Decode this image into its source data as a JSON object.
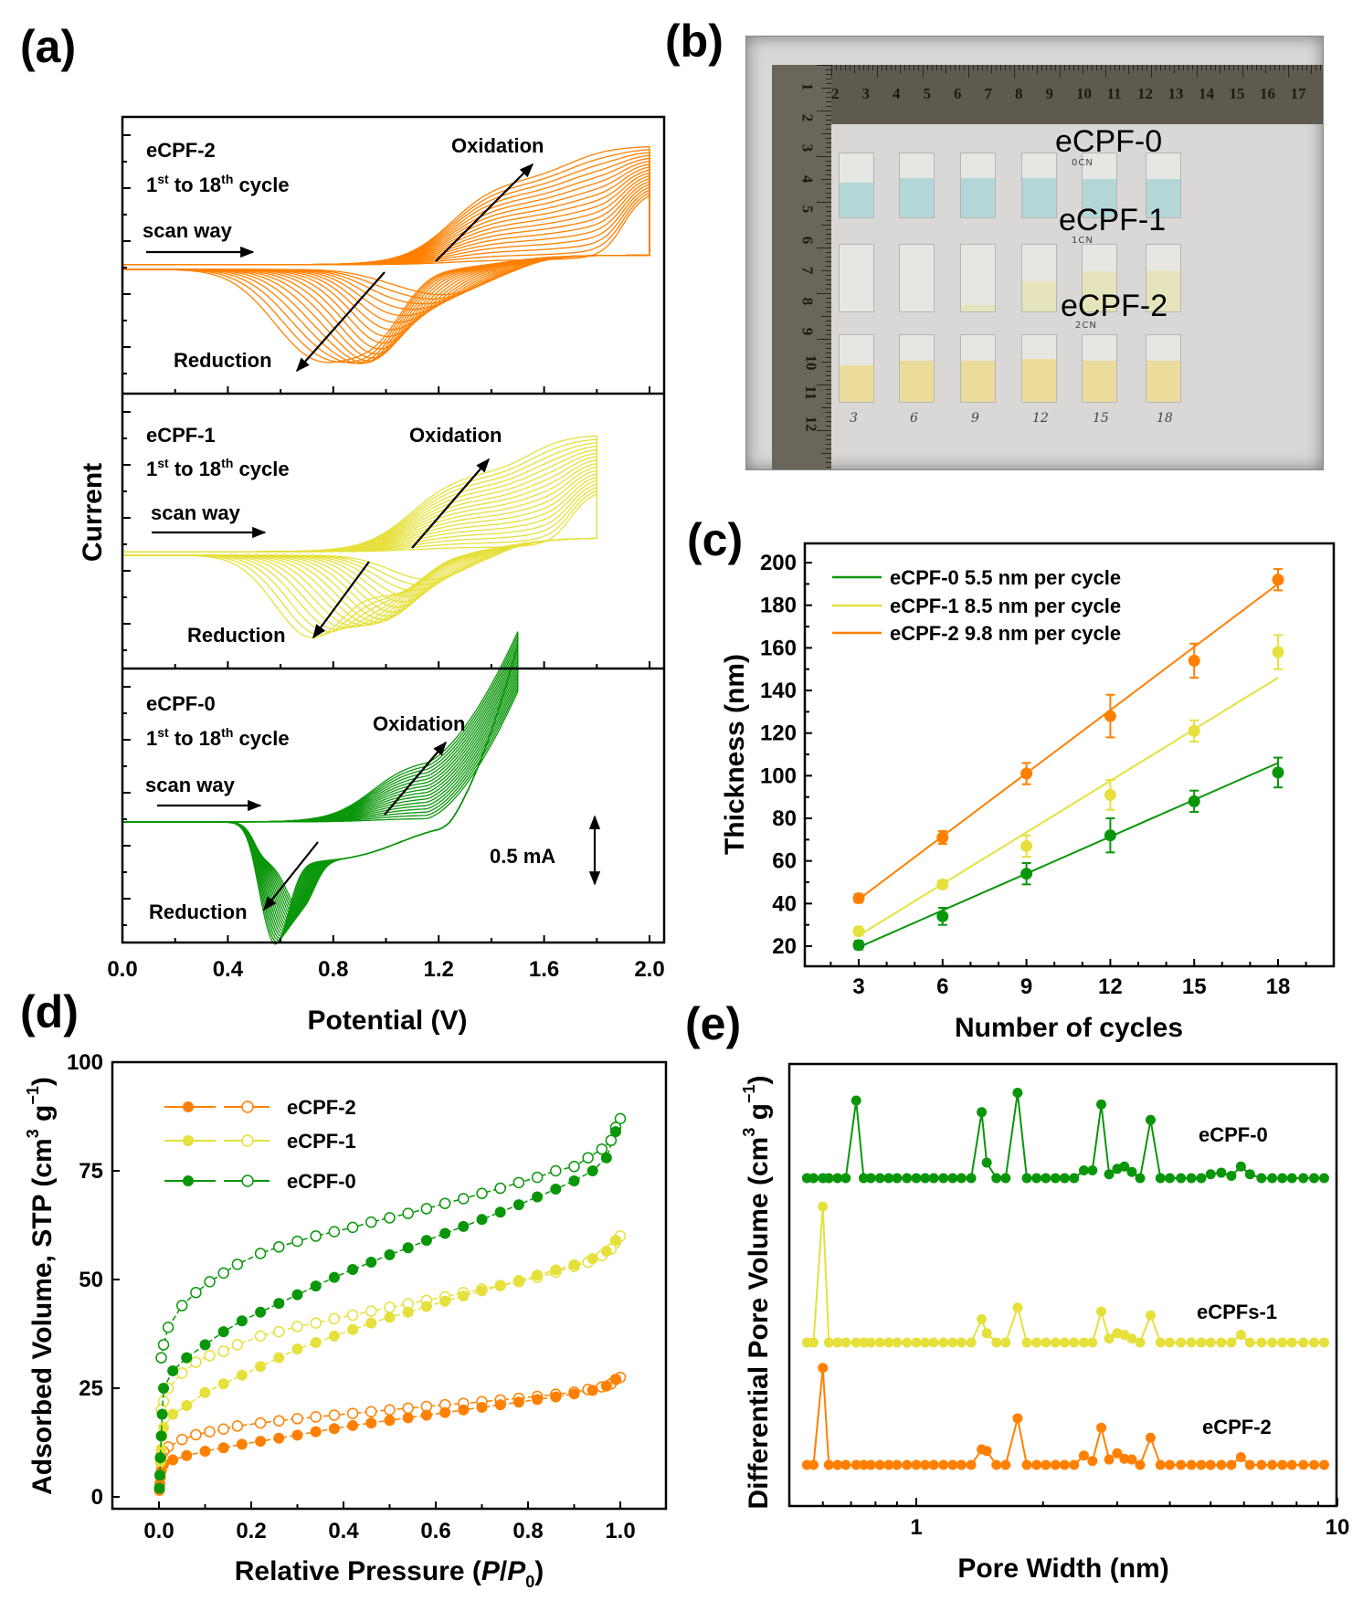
{
  "panel_labels": {
    "a": "(a)",
    "b": "(b)",
    "c": "(c)",
    "d": "(d)",
    "e": "(e)"
  },
  "colors": {
    "eCPF-0": "#0a960a",
    "eCPF-1": "#e6e03c",
    "eCPF-2": "#ff8000"
  },
  "chart_data": [
    {
      "panel": "a",
      "type": "line",
      "xlabel": "Potential (V)",
      "ylabel": "Current",
      "xlim": [
        0.0,
        2.05
      ],
      "xticks": [
        "0.0",
        "0.4",
        "0.8",
        "1.2",
        "1.6",
        "2.0"
      ],
      "grid": false,
      "scale_bar": "0.5 mA",
      "subplots": [
        {
          "name": "eCPF-2",
          "vmax": 2.0,
          "cycles": 18,
          "cycle_text": {
            "n1": "1",
            "s1": "st",
            "mid": " to 18",
            "s2": "th",
            "end": " cycle"
          },
          "scan": "scan way",
          "ox": "Oxidation",
          "red": "Reduction"
        },
        {
          "name": "eCPF-1",
          "vmax": 1.8,
          "cycles": 18,
          "cycle_text": {
            "n1": "1",
            "s1": "st",
            "mid": " to 18",
            "s2": "th",
            "end": " cycle"
          },
          "scan": "scan way",
          "ox": "Oxidation",
          "red": "Reduction"
        },
        {
          "name": "eCPF-0",
          "vmax": 1.5,
          "cycles": 18,
          "cycle_text": {
            "n1": "1",
            "s1": "st",
            "mid": " to 18",
            "s2": "th",
            "end": " cycle"
          },
          "scan": "scan way",
          "ox": "Oxidation",
          "red": "Reduction"
        }
      ]
    },
    {
      "panel": "c",
      "type": "scatter",
      "xlabel": "Number of cycles",
      "ylabel": "Thickness (nm)",
      "xlim": [
        1,
        20
      ],
      "ylim": [
        10,
        210
      ],
      "xticks": [
        3,
        6,
        9,
        12,
        15,
        18
      ],
      "yticks": [
        20,
        40,
        60,
        80,
        100,
        120,
        140,
        160,
        180,
        200
      ],
      "legend_position": "top-left",
      "x": [
        3,
        6,
        9,
        12,
        15,
        18
      ],
      "series": [
        {
          "name": "eCPF-0",
          "legend": "eCPF-0  5.5 nm per cycle",
          "values": [
            20.5,
            34,
            54,
            72,
            88,
            101.5
          ],
          "errors": [
            2,
            4,
            5,
            8,
            5,
            7
          ],
          "fit": [
            19.5,
            106
          ]
        },
        {
          "name": "eCPF-1",
          "legend": "eCPF-1  8.5 nm per cycle",
          "values": [
            27,
            49,
            67,
            91,
            121,
            158
          ],
          "errors": [
            2,
            2,
            5,
            7,
            5,
            8
          ],
          "fit": [
            25,
            146
          ]
        },
        {
          "name": "eCPF-2",
          "legend": "eCPF-2  9.8 nm per cycle",
          "values": [
            42.5,
            71,
            101,
            128,
            154,
            192
          ],
          "errors": [
            2,
            3,
            5,
            10,
            8,
            5
          ],
          "fit": [
            42,
            190
          ]
        }
      ]
    },
    {
      "panel": "d",
      "type": "scatter",
      "xlabel": {
        "pre": "Relative Pressure (",
        "p": "P",
        "slash": "/",
        "p0": "P",
        "sub": "0",
        "post": ")"
      },
      "ylabel": {
        "pre": "Adsorbed Volume, STP (cm",
        "sup1": "3",
        "mid": " g",
        "sup2": "−1",
        "post": ")"
      },
      "xlim": [
        -0.1,
        1.1
      ],
      "ylim": [
        -2.6,
        100
      ],
      "xticks": [
        "0.0",
        "0.2",
        "0.4",
        "0.6",
        "0.8",
        "1.0"
      ],
      "yticks": [
        0,
        25,
        50,
        75,
        100
      ],
      "legend_position": "top-left",
      "adsorption_x": [
        0.001,
        0.002,
        0.003,
        0.005,
        0.007,
        0.01,
        0.03,
        0.06,
        0.1,
        0.14,
        0.18,
        0.22,
        0.26,
        0.3,
        0.34,
        0.38,
        0.42,
        0.46,
        0.5,
        0.54,
        0.58,
        0.62,
        0.66,
        0.7,
        0.74,
        0.78,
        0.82,
        0.86,
        0.9,
        0.94,
        0.97,
        0.99
      ],
      "desorption_x": [
        1.0,
        0.99,
        0.98,
        0.96,
        0.93,
        0.9,
        0.86,
        0.82,
        0.78,
        0.74,
        0.7,
        0.66,
        0.62,
        0.58,
        0.54,
        0.5,
        0.46,
        0.42,
        0.38,
        0.34,
        0.3,
        0.26,
        0.22,
        0.17,
        0.14,
        0.11,
        0.08,
        0.05,
        0.02,
        0.01,
        0.005
      ],
      "series": [
        {
          "name": "eCPF-2",
          "adsorption": [
            1.5,
            3,
            4.5,
            6,
            7,
            7.5,
            8.5,
            9.5,
            10.5,
            11.3,
            12.1,
            12.8,
            13.5,
            14.2,
            15,
            15.7,
            16.4,
            17,
            17.6,
            18.2,
            18.8,
            19.4,
            20,
            20.6,
            21.2,
            21.8,
            22.4,
            23,
            23.7,
            24.5,
            25.5,
            27
          ],
          "desorption": [
            27.5,
            27,
            26,
            25.3,
            24.7,
            24.1,
            23.6,
            23.1,
            22.7,
            22.3,
            21.9,
            21.5,
            21.2,
            20.8,
            20.4,
            20,
            19.6,
            19.2,
            18.8,
            18.4,
            18,
            17.5,
            17,
            16.3,
            15.6,
            15,
            14.3,
            13.2,
            11.5,
            10.5,
            9.5
          ]
        },
        {
          "name": "eCPF-1",
          "adsorption": [
            2,
            5,
            8,
            11,
            14,
            16,
            19,
            21,
            24,
            26,
            28,
            30,
            32,
            34,
            35.5,
            37,
            38.5,
            40,
            41.3,
            42.5,
            43.8,
            45,
            46.2,
            47.4,
            48.6,
            49.8,
            51,
            52.2,
            53.4,
            54.8,
            56.5,
            59
          ],
          "desorption": [
            60,
            58.5,
            57,
            55.5,
            54,
            53,
            51.7,
            50.5,
            49.5,
            48.6,
            47.8,
            47,
            46,
            45.2,
            44.4,
            43.6,
            42.7,
            41.8,
            41,
            40,
            39.2,
            38,
            37,
            35,
            33.5,
            32.5,
            31,
            28.5,
            25,
            22,
            20
          ]
        },
        {
          "name": "eCPF-0",
          "adsorption": [
            2,
            5,
            9,
            14,
            19,
            25,
            29,
            32,
            35,
            38,
            40.5,
            42.5,
            44.5,
            46.5,
            48.5,
            50.5,
            52.3,
            54,
            55.7,
            57.3,
            59,
            60.6,
            62.2,
            63.8,
            65.5,
            67.2,
            69,
            70.8,
            72.7,
            75,
            78,
            84
          ],
          "desorption": [
            87,
            85,
            82,
            80,
            78,
            76,
            75,
            73.5,
            72.3,
            71,
            69.8,
            68.6,
            67.5,
            66.3,
            65.2,
            64.2,
            63.2,
            62,
            61,
            60,
            58.8,
            57.5,
            56,
            53.5,
            51.5,
            49.5,
            47,
            44,
            39,
            35,
            32
          ]
        }
      ]
    },
    {
      "panel": "e",
      "type": "line",
      "xlabel": "Pore Width (nm)",
      "ylabel": {
        "pre": "Differential Pore Volume (cm",
        "sup1": "3",
        "mid": " g",
        "sup2": "−1",
        "post": ")"
      },
      "xscale": "log",
      "xlim": [
        0.5,
        10
      ],
      "xticks": [
        "1",
        "10"
      ],
      "y_units": "arbitrary (stacked, no tick labels)",
      "x": [
        0.55,
        0.57,
        0.6,
        0.62,
        0.65,
        0.68,
        0.72,
        0.75,
        0.78,
        0.82,
        0.86,
        0.9,
        0.95,
        1.0,
        1.05,
        1.1,
        1.16,
        1.22,
        1.28,
        1.35,
        1.43,
        1.47,
        1.55,
        1.63,
        1.74,
        1.83,
        1.93,
        2.03,
        2.14,
        2.25,
        2.37,
        2.5,
        2.62,
        2.75,
        2.87,
        3.0,
        3.12,
        3.25,
        3.4,
        3.6,
        3.8,
        4.0,
        4.25,
        4.5,
        4.75,
        5.0,
        5.3,
        5.6,
        5.9,
        6.2,
        6.6,
        7.0,
        7.4,
        7.8,
        8.3,
        8.8,
        9.3
      ],
      "series": [
        {
          "name": "eCPF-0",
          "label": "eCPF-0",
          "values": [
            0,
            0,
            0,
            0,
            0,
            0,
            1.0,
            0,
            0,
            0,
            0,
            0,
            0,
            0,
            0,
            0,
            0,
            0,
            0,
            0,
            0.85,
            0.2,
            0,
            0,
            1.1,
            0,
            0,
            0,
            0,
            0,
            0,
            0.1,
            0.1,
            0.95,
            0.05,
            0.12,
            0.15,
            0.08,
            0,
            0.75,
            0,
            0,
            0,
            0,
            0,
            0.05,
            0.07,
            0.03,
            0.15,
            0.05,
            0,
            0,
            0,
            0,
            0,
            0,
            0
          ]
        },
        {
          "name": "eCPF-1",
          "label": "eCPFs-1",
          "values": [
            0,
            0,
            1.75,
            0,
            0,
            0,
            0,
            0,
            0,
            0,
            0,
            0,
            0,
            0,
            0,
            0,
            0,
            0,
            0,
            0,
            0.3,
            0.12,
            0,
            0,
            0.45,
            0,
            0,
            0,
            0,
            0,
            0,
            0,
            0,
            0.4,
            0.05,
            0.12,
            0.1,
            0.05,
            0,
            0.35,
            0,
            0,
            0,
            0,
            0,
            0,
            0,
            0,
            0.1,
            0,
            0,
            0,
            0,
            0,
            0,
            0,
            0
          ]
        },
        {
          "name": "eCPF-2",
          "label": "eCPF-2",
          "values": [
            0,
            0,
            1.25,
            0,
            0,
            0,
            0,
            0,
            0,
            0,
            0,
            0,
            0,
            0,
            0,
            0,
            0,
            0,
            0,
            0,
            0.2,
            0.18,
            0,
            0,
            0.6,
            0,
            0,
            0,
            0,
            0,
            0,
            0.12,
            0.05,
            0.48,
            0.07,
            0.15,
            0.08,
            0.07,
            0,
            0.35,
            0,
            0,
            0,
            0,
            0,
            0,
            0,
            0,
            0.1,
            0,
            0,
            0,
            0,
            0,
            0,
            0,
            0
          ]
        }
      ]
    }
  ],
  "photo": {
    "row_labels": [
      "eCPF-0",
      "eCPF-1",
      "eCPF-2"
    ],
    "handwritten_row_tags": [
      "0CN",
      "1CN",
      "2CN"
    ],
    "cycle_numbers": [
      "3",
      "6",
      "9",
      "12",
      "15",
      "18"
    ],
    "ruler_h_numbers": [
      "2",
      "3",
      "4",
      "5",
      "6",
      "7",
      "8",
      "9",
      "10",
      "11",
      "12",
      "13",
      "14",
      "15",
      "16",
      "17"
    ],
    "ruler_v_numbers": [
      "1",
      "2",
      "3",
      "4",
      "5",
      "6",
      "7",
      "8",
      "9",
      "10",
      "11",
      "12"
    ],
    "film_colors": [
      "#a9d3d6",
      "#e6e3b8",
      "#ecd98f"
    ],
    "film_levels": [
      [
        0.55,
        0.62,
        0.62,
        0.62,
        0.6,
        0.6
      ],
      [
        0.0,
        0.0,
        0.1,
        0.45,
        0.6,
        0.62
      ],
      [
        0.55,
        0.62,
        0.62,
        0.65,
        0.62,
        0.62
      ]
    ]
  }
}
